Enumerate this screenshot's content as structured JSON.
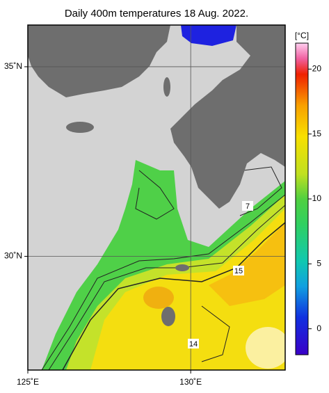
{
  "map": {
    "title": "Daily 400m temperatures 18 Aug. 2022.",
    "xlim": [
      125,
      132.9
    ],
    "ylim": [
      27,
      36.1
    ],
    "xticks": [
      {
        "value": 125,
        "label": "125˚E"
      },
      {
        "value": 130,
        "label": "130˚E"
      }
    ],
    "yticks": [
      {
        "value": 30,
        "label": "30˚N"
      },
      {
        "value": 35,
        "label": "35˚N"
      }
    ],
    "colorbar": {
      "title": "[°C]",
      "lim": [
        -2,
        22
      ],
      "ticks": [
        0,
        5,
        10,
        15,
        20
      ]
    },
    "contour_labels": [
      7,
      15,
      14
    ]
  }
}
